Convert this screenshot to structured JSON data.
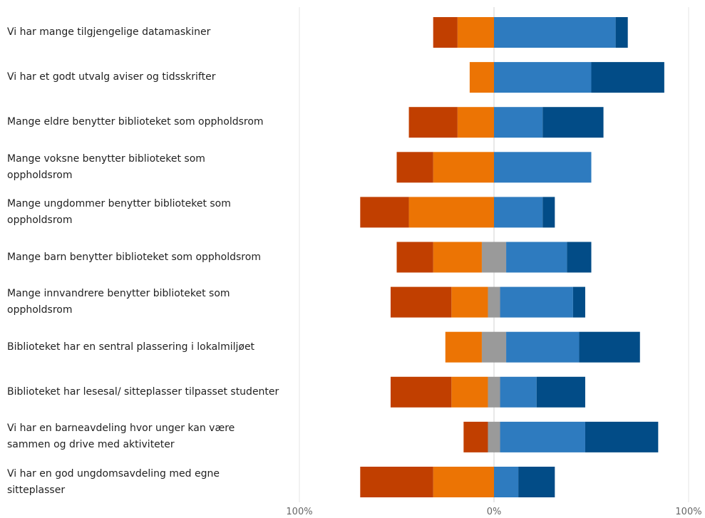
{
  "chart_data": {
    "type": "bar",
    "orientation": "horizontal",
    "stacked": "diverging",
    "categories": [
      "Vi har mange tilgjengelige datamaskiner",
      "Vi har et godt utvalg aviser og tidsskrifter",
      "Mange eldre benytter biblioteket som oppholdsrom",
      "Mange voksne benytter biblioteket som\noppholdsrom",
      "Mange ungdommer benytter biblioteket som\noppholdsrom",
      "Mange barn benytter biblioteket som oppholdsrom",
      "Mange innvandrere benytter biblioteket som\noppholdsrom",
      "Biblioteket har en sentral plassering i lokalmiljøet",
      "Biblioteket har lesesal/ sitteplasser tilpasset studenter",
      "Vi har en barneavdeling hvor unger kan være\nsammen og drive med aktiviteter",
      "Vi har en god ungdomsavdeling med egne\nsitteplasser"
    ],
    "series": [
      {
        "key": "strong_neg",
        "color": "#c13f00",
        "side": "negative",
        "values": [
          12.5,
          0,
          25,
          18.75,
          25,
          18.75,
          31.25,
          0,
          31.25,
          12.5,
          37.5
        ]
      },
      {
        "key": "neg",
        "color": "#ec7404",
        "side": "negative",
        "values": [
          18.75,
          12.5,
          18.75,
          31.25,
          43.75,
          25,
          18.75,
          18.75,
          18.75,
          0,
          31.25
        ]
      },
      {
        "key": "neutral",
        "color": "#9a9a9a",
        "side": "split",
        "values": [
          0,
          0,
          0,
          0,
          0,
          12.5,
          6.25,
          12.5,
          6.25,
          6.25,
          0
        ]
      },
      {
        "key": "pos",
        "color": "#2e7bbf",
        "side": "positive",
        "values": [
          62.5,
          50,
          25,
          50,
          25,
          31.25,
          37.5,
          37.5,
          18.75,
          43.75,
          12.5
        ]
      },
      {
        "key": "strong_pos",
        "color": "#024c87",
        "side": "positive",
        "values": [
          6.25,
          37.5,
          31.25,
          0,
          6.25,
          12.5,
          6.25,
          31.25,
          25,
          37.5,
          18.75
        ]
      }
    ],
    "xlim": [
      -100,
      100
    ],
    "x_ticks": [
      "100%",
      "0%",
      "100%"
    ],
    "grid": "vertical at -100, 0, 100",
    "legend": "none"
  }
}
